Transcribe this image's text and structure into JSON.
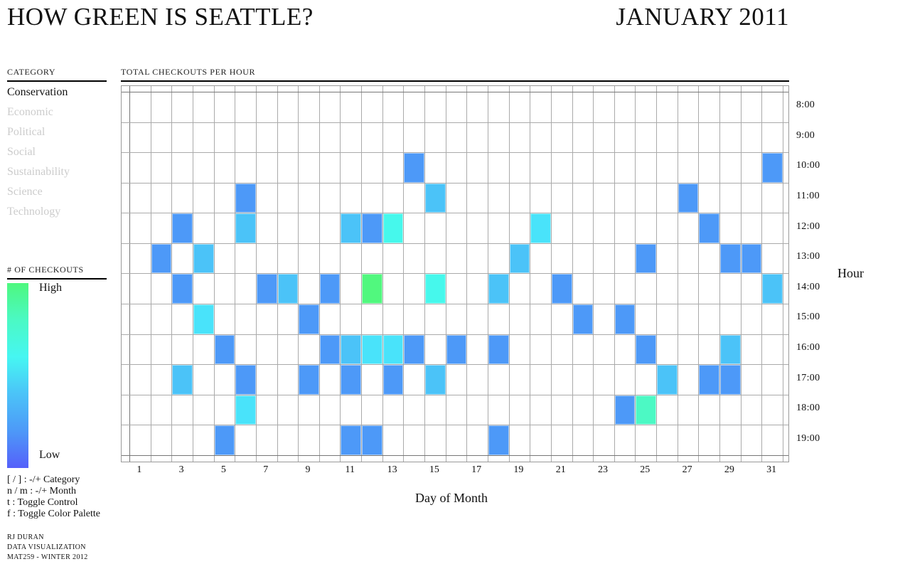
{
  "header": {
    "title": "HOW GREEN IS SEATTLE?",
    "month": "JANUARY 2011"
  },
  "sidebar": {
    "category_heading": "CATEGORY",
    "categories": [
      {
        "label": "Conservation",
        "active": true
      },
      {
        "label": "Economic",
        "active": false
      },
      {
        "label": "Political",
        "active": false
      },
      {
        "label": "Social",
        "active": false
      },
      {
        "label": "Sustainability",
        "active": false
      },
      {
        "label": "Science",
        "active": false
      },
      {
        "label": "Technology",
        "active": false
      }
    ],
    "legend_heading": "# OF CHECKOUTS",
    "legend_high_label": "High",
    "legend_low_label": "Low",
    "legend_gradient_top_to_bottom": [
      "#4EF87E",
      "#4BF9C4",
      "#46F6F2",
      "#4BC3F8",
      "#4D99F8",
      "#5560FA"
    ],
    "shortcuts": [
      "[ / ] : -/+ Category",
      "n / m : -/+ Month",
      "t : Toggle Control",
      "f : Toggle Color Palette"
    ],
    "credits": [
      "RJ DURAN",
      "DATA VISUALIZATION",
      "MAT259 - WINTER 2012"
    ]
  },
  "chart_data": {
    "type": "heatmap",
    "title": "TOTAL CHECKOUTS PER HOUR",
    "xlabel": "Day of Month",
    "ylabel": "Hour",
    "x_range": [
      1,
      31
    ],
    "x_ticks": [
      1,
      3,
      5,
      7,
      9,
      11,
      13,
      15,
      17,
      19,
      21,
      23,
      25,
      27,
      29,
      31
    ],
    "y_ticks": [
      "8:00",
      "9:00",
      "10:00",
      "11:00",
      "12:00",
      "13:00",
      "14:00",
      "15:00",
      "16:00",
      "17:00",
      "18:00",
      "19:00"
    ],
    "value_encoding": "color level 1 = Low checkouts (blue) ... 6 = High checkouts (green)",
    "color_levels": {
      "1": "#4D99F8",
      "2": "#4BC3F8",
      "3": "#49E3FA",
      "4": "#46F8EC",
      "5": "#4CF9C4",
      "6": "#51F87E"
    },
    "cells": [
      {
        "day": 14,
        "hour": "10:00",
        "level": 1
      },
      {
        "day": 31,
        "hour": "10:00",
        "level": 1
      },
      {
        "day": 6,
        "hour": "11:00",
        "level": 1
      },
      {
        "day": 15,
        "hour": "11:00",
        "level": 2
      },
      {
        "day": 27,
        "hour": "11:00",
        "level": 1
      },
      {
        "day": 3,
        "hour": "12:00",
        "level": 1
      },
      {
        "day": 6,
        "hour": "12:00",
        "level": 2
      },
      {
        "day": 11,
        "hour": "12:00",
        "level": 2
      },
      {
        "day": 12,
        "hour": "12:00",
        "level": 1
      },
      {
        "day": 13,
        "hour": "12:00",
        "level": 4
      },
      {
        "day": 20,
        "hour": "12:00",
        "level": 3
      },
      {
        "day": 28,
        "hour": "12:00",
        "level": 1
      },
      {
        "day": 2,
        "hour": "13:00",
        "level": 1
      },
      {
        "day": 4,
        "hour": "13:00",
        "level": 2
      },
      {
        "day": 19,
        "hour": "13:00",
        "level": 2
      },
      {
        "day": 25,
        "hour": "13:00",
        "level": 1
      },
      {
        "day": 29,
        "hour": "13:00",
        "level": 1
      },
      {
        "day": 30,
        "hour": "13:00",
        "level": 1
      },
      {
        "day": 3,
        "hour": "14:00",
        "level": 1
      },
      {
        "day": 7,
        "hour": "14:00",
        "level": 1
      },
      {
        "day": 8,
        "hour": "14:00",
        "level": 2
      },
      {
        "day": 10,
        "hour": "14:00",
        "level": 1
      },
      {
        "day": 12,
        "hour": "14:00",
        "level": 6
      },
      {
        "day": 15,
        "hour": "14:00",
        "level": 4
      },
      {
        "day": 18,
        "hour": "14:00",
        "level": 2
      },
      {
        "day": 21,
        "hour": "14:00",
        "level": 1
      },
      {
        "day": 31,
        "hour": "14:00",
        "level": 2
      },
      {
        "day": 4,
        "hour": "15:00",
        "level": 3
      },
      {
        "day": 9,
        "hour": "15:00",
        "level": 1
      },
      {
        "day": 22,
        "hour": "15:00",
        "level": 1
      },
      {
        "day": 24,
        "hour": "15:00",
        "level": 1
      },
      {
        "day": 5,
        "hour": "16:00",
        "level": 1
      },
      {
        "day": 10,
        "hour": "16:00",
        "level": 1
      },
      {
        "day": 11,
        "hour": "16:00",
        "level": 2
      },
      {
        "day": 12,
        "hour": "16:00",
        "level": 3
      },
      {
        "day": 13,
        "hour": "16:00",
        "level": 3
      },
      {
        "day": 14,
        "hour": "16:00",
        "level": 1
      },
      {
        "day": 16,
        "hour": "16:00",
        "level": 1
      },
      {
        "day": 18,
        "hour": "16:00",
        "level": 1
      },
      {
        "day": 25,
        "hour": "16:00",
        "level": 1
      },
      {
        "day": 29,
        "hour": "16:00",
        "level": 2
      },
      {
        "day": 3,
        "hour": "17:00",
        "level": 2
      },
      {
        "day": 6,
        "hour": "17:00",
        "level": 1
      },
      {
        "day": 9,
        "hour": "17:00",
        "level": 1
      },
      {
        "day": 11,
        "hour": "17:00",
        "level": 1
      },
      {
        "day": 13,
        "hour": "17:00",
        "level": 1
      },
      {
        "day": 15,
        "hour": "17:00",
        "level": 2
      },
      {
        "day": 26,
        "hour": "17:00",
        "level": 2
      },
      {
        "day": 28,
        "hour": "17:00",
        "level": 1
      },
      {
        "day": 29,
        "hour": "17:00",
        "level": 1
      },
      {
        "day": 6,
        "hour": "18:00",
        "level": 3
      },
      {
        "day": 24,
        "hour": "18:00",
        "level": 1
      },
      {
        "day": 25,
        "hour": "18:00",
        "level": 5
      },
      {
        "day": 5,
        "hour": "19:00",
        "level": 1
      },
      {
        "day": 11,
        "hour": "19:00",
        "level": 1
      },
      {
        "day": 12,
        "hour": "19:00",
        "level": 1
      },
      {
        "day": 18,
        "hour": "19:00",
        "level": 1
      }
    ]
  }
}
